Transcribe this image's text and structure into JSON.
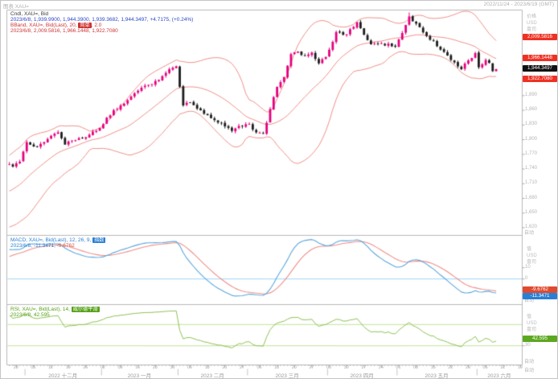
{
  "header": {
    "left": "图表 XAU=",
    "right": "2022/11/24 - 2023/6/19 (GMT)"
  },
  "legend_price": {
    "line1": "Cndl, XAU=, Bid",
    "line2": "2023/6/8, 1,939.9900, 1,944.3900, 1,939.3682, 1,944.3497, +4.7175, (+0.24%)",
    "line3_prefix": "BBand, XAU=, Bid(Last), 20, ",
    "line3_chip": "简单",
    "line3_suffix": ", 2.0",
    "line4": "2023/6/8, 2,009.5816, 1,966.1448, 1,922.7080",
    "chip_bg": "#cf3333"
  },
  "legend_macd": {
    "line1_prefix": "MACD, XAU=, Bid(Last), 12, 26, 9, ",
    "line1_chip": "指数",
    "line2_blue": "2023/6/8, -11.3471,",
    "line2_red": " -9.6762",
    "chip_bg": "#2a7fd4"
  },
  "legend_rsi": {
    "line1_prefix": "RSI, XAU=, Bid(Last), 14, ",
    "line1_chip": "威尔德平滑",
    "line2": "2023/6/8, 42.595",
    "chip_bg": "#56a018"
  },
  "axis_price": {
    "title": [
      "价格",
      "USD",
      "盎司"
    ],
    "auto": "自动",
    "ticks": [
      [
        1890,
        "1,890"
      ],
      [
        1860,
        "1,860"
      ],
      [
        1830,
        "1,830"
      ],
      [
        1800,
        "1,800"
      ],
      [
        1770,
        "1,770"
      ],
      [
        1740,
        "1,740"
      ],
      [
        1710,
        "1,710"
      ],
      [
        1680,
        "1,680"
      ],
      [
        1650,
        "1,650"
      ],
      [
        1620,
        "1,620"
      ]
    ],
    "badges": [
      {
        "v": 2009.5816,
        "label": "2,009.5816",
        "bg": "#ee3124"
      },
      {
        "v": 1966.1448,
        "label": "1,966.1448",
        "bg": "#ee3124"
      },
      {
        "v": 1944.3497,
        "label": "1,944.3497",
        "bg": "#111111"
      },
      {
        "v": 1922.708,
        "label": "1,922.7080",
        "bg": "#ee3124"
      }
    ]
  },
  "axis_macd": {
    "title": [
      "值",
      "USD",
      "盎司"
    ],
    "auto": "自动",
    "ticks": [
      [
        10,
        "10"
      ],
      [
        0,
        "0"
      ]
    ],
    "badges": [
      {
        "v": -9.6762,
        "label": "-9.6762",
        "bg": "#e04a2f"
      },
      {
        "v": -11.3471,
        "label": "-11.3471",
        "bg": "#2a7fd4"
      }
    ]
  },
  "axis_rsi": {
    "title": [
      "值",
      "USD",
      "盎司"
    ],
    "auto": "自动",
    "ticks": [
      [
        30,
        "30"
      ]
    ],
    "badges": [
      {
        "v": 42.595,
        "label": "42.595",
        "bg": "#5da821"
      }
    ]
  },
  "xaxis": {
    "auto": "自动",
    "days": [
      [
        2,
        "28"
      ],
      [
        7,
        "05"
      ],
      [
        12,
        "12"
      ],
      [
        17,
        "19"
      ],
      [
        22,
        "26"
      ],
      [
        27,
        "02"
      ],
      [
        32,
        "09"
      ],
      [
        37,
        "16"
      ],
      [
        42,
        "23"
      ],
      [
        47,
        "30"
      ],
      [
        52,
        "06"
      ],
      [
        57,
        "13"
      ],
      [
        62,
        "20"
      ],
      [
        67,
        "27"
      ],
      [
        72,
        "06"
      ],
      [
        77,
        "13"
      ],
      [
        82,
        "20"
      ],
      [
        87,
        "27"
      ],
      [
        92,
        "03"
      ],
      [
        97,
        "10"
      ],
      [
        102,
        "17"
      ],
      [
        107,
        "24"
      ],
      [
        112,
        "01"
      ],
      [
        117,
        "08"
      ],
      [
        122,
        "15"
      ],
      [
        127,
        "22"
      ],
      [
        132,
        "29"
      ],
      [
        137,
        "05"
      ],
      [
        142,
        "12"
      ],
      [
        147,
        "19"
      ]
    ],
    "months": [
      [
        15.5,
        "2022 十二月"
      ],
      [
        37.5,
        "2023 一月"
      ],
      [
        58.5,
        "2023 二月"
      ],
      [
        80,
        "2023 三月"
      ],
      [
        101.5,
        "2023 四月"
      ],
      [
        123,
        "2023 五月"
      ],
      [
        141,
        "2023 六月"
      ]
    ],
    "month_separators": [
      4.5,
      26.5,
      48.5,
      68.5,
      91.5,
      111.5,
      134.5
    ]
  },
  "chart_data": {
    "type": "candlestick",
    "instrument": "XAU=",
    "quote_side": "Bid",
    "legend_position": "top-left of each pane",
    "grid": "off",
    "panes": [
      "price+bollinger",
      "macd",
      "rsi"
    ],
    "total_slots": 148,
    "visible_last_slot": 140,
    "warmup_slots": 30,
    "price_ylim": [
      1606,
      2060
    ],
    "macd_ylim": [
      -22,
      38
    ],
    "rsi_ylim": [
      -6,
      106
    ],
    "rsi_guides": [
      70,
      30
    ],
    "close_anchors": [
      [
        -30,
        1645
      ],
      [
        -25,
        1630
      ],
      [
        -20,
        1665
      ],
      [
        -15,
        1650
      ],
      [
        -10,
        1680
      ],
      [
        -5,
        1730
      ],
      [
        -2,
        1750
      ],
      [
        0,
        1750
      ],
      [
        1,
        1745
      ],
      [
        3,
        1755
      ],
      [
        5,
        1795
      ],
      [
        8,
        1785
      ],
      [
        12,
        1808
      ],
      [
        14,
        1815
      ],
      [
        16,
        1790
      ],
      [
        18,
        1798
      ],
      [
        22,
        1805
      ],
      [
        26,
        1824
      ],
      [
        28,
        1845
      ],
      [
        32,
        1870
      ],
      [
        37,
        1900
      ],
      [
        40,
        1912
      ],
      [
        42,
        1920
      ],
      [
        44,
        1930
      ],
      [
        46,
        1944
      ],
      [
        48,
        1950
      ],
      [
        50,
        1870
      ],
      [
        52,
        1876
      ],
      [
        55,
        1860
      ],
      [
        58,
        1844
      ],
      [
        61,
        1834
      ],
      [
        64,
        1818
      ],
      [
        66,
        1828
      ],
      [
        69,
        1832
      ],
      [
        71,
        1815
      ],
      [
        73,
        1813
      ],
      [
        77,
        1908
      ],
      [
        79,
        1928
      ],
      [
        81,
        1975
      ],
      [
        83,
        1980
      ],
      [
        85,
        1972
      ],
      [
        87,
        1978
      ],
      [
        89,
        1956
      ],
      [
        91,
        1969
      ],
      [
        92,
        1984
      ],
      [
        94,
        2020
      ],
      [
        97,
        2015
      ],
      [
        100,
        2040
      ],
      [
        104,
        1995
      ],
      [
        107,
        1997
      ],
      [
        111,
        1990
      ],
      [
        113,
        2018
      ],
      [
        115,
        2052
      ],
      [
        118,
        2030
      ],
      [
        120,
        2012
      ],
      [
        122,
        2002
      ],
      [
        124,
        1984
      ],
      [
        126,
        1972
      ],
      [
        128,
        1958
      ],
      [
        130,
        1944
      ],
      [
        132,
        1962
      ],
      [
        134,
        1977
      ],
      [
        135,
        1948
      ],
      [
        137,
        1963
      ],
      [
        138,
        1957
      ],
      [
        139,
        1940
      ],
      [
        140,
        1944.3497
      ]
    ],
    "spike_high": [
      115,
      2080
    ],
    "last_candle": {
      "open": 1939.99,
      "high": 1944.39,
      "low": 1939.3682,
      "close": 1944.3497
    },
    "indicators": {
      "bband": [
        20,
        2
      ],
      "macd": [
        12,
        26,
        9
      ],
      "rsi": 14
    },
    "colors": {
      "up": "#e6007e",
      "down": "#1c1c1c",
      "bband": "#ef8f88",
      "macd_line": "#5aa7dd",
      "macd_signal": "#ef8f88",
      "macd_zero": "#9fd4f5",
      "rsi_line": "#8cc152",
      "rsi_guide": "#c3e09a",
      "frame": "#b8b8b8"
    }
  }
}
